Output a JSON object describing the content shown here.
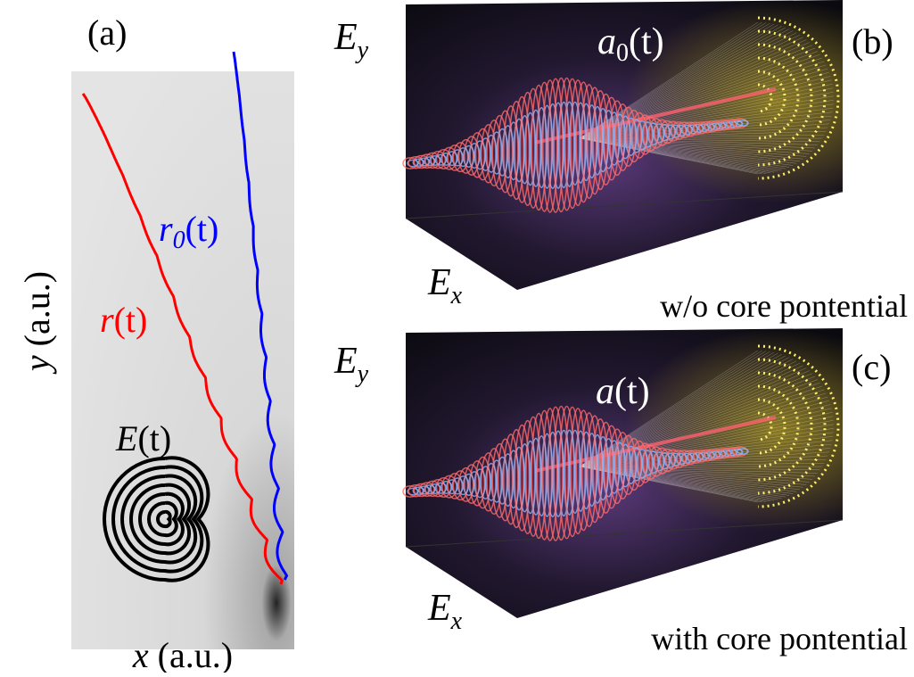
{
  "panel_a": {
    "label": "(a)",
    "y_axis": {
      "var": "y",
      "unit": " (a.u.)"
    },
    "x_axis": {
      "var": "x",
      "unit": " (a.u.)"
    },
    "field": {
      "base": "E",
      "arg": "(t)"
    },
    "trajectory": {
      "base": "r",
      "arg": "(t)"
    },
    "trajectory_free": {
      "base": "r",
      "sub": "0",
      "arg": "(t)"
    }
  },
  "panel_b": {
    "label": "(b)",
    "ey": {
      "base": "E",
      "sub": "y"
    },
    "ex": {
      "base": "E",
      "sub": "x"
    },
    "accel": {
      "base": "a",
      "sub": "0",
      "arg": "(t)"
    },
    "caption": "w/o core pontential"
  },
  "panel_c": {
    "label": "(c)",
    "ey": {
      "base": "E",
      "sub": "y"
    },
    "ex": {
      "base": "E",
      "sub": "x"
    },
    "accel": {
      "base": "a",
      "arg": "(t)"
    },
    "caption": "with core pontential"
  }
}
